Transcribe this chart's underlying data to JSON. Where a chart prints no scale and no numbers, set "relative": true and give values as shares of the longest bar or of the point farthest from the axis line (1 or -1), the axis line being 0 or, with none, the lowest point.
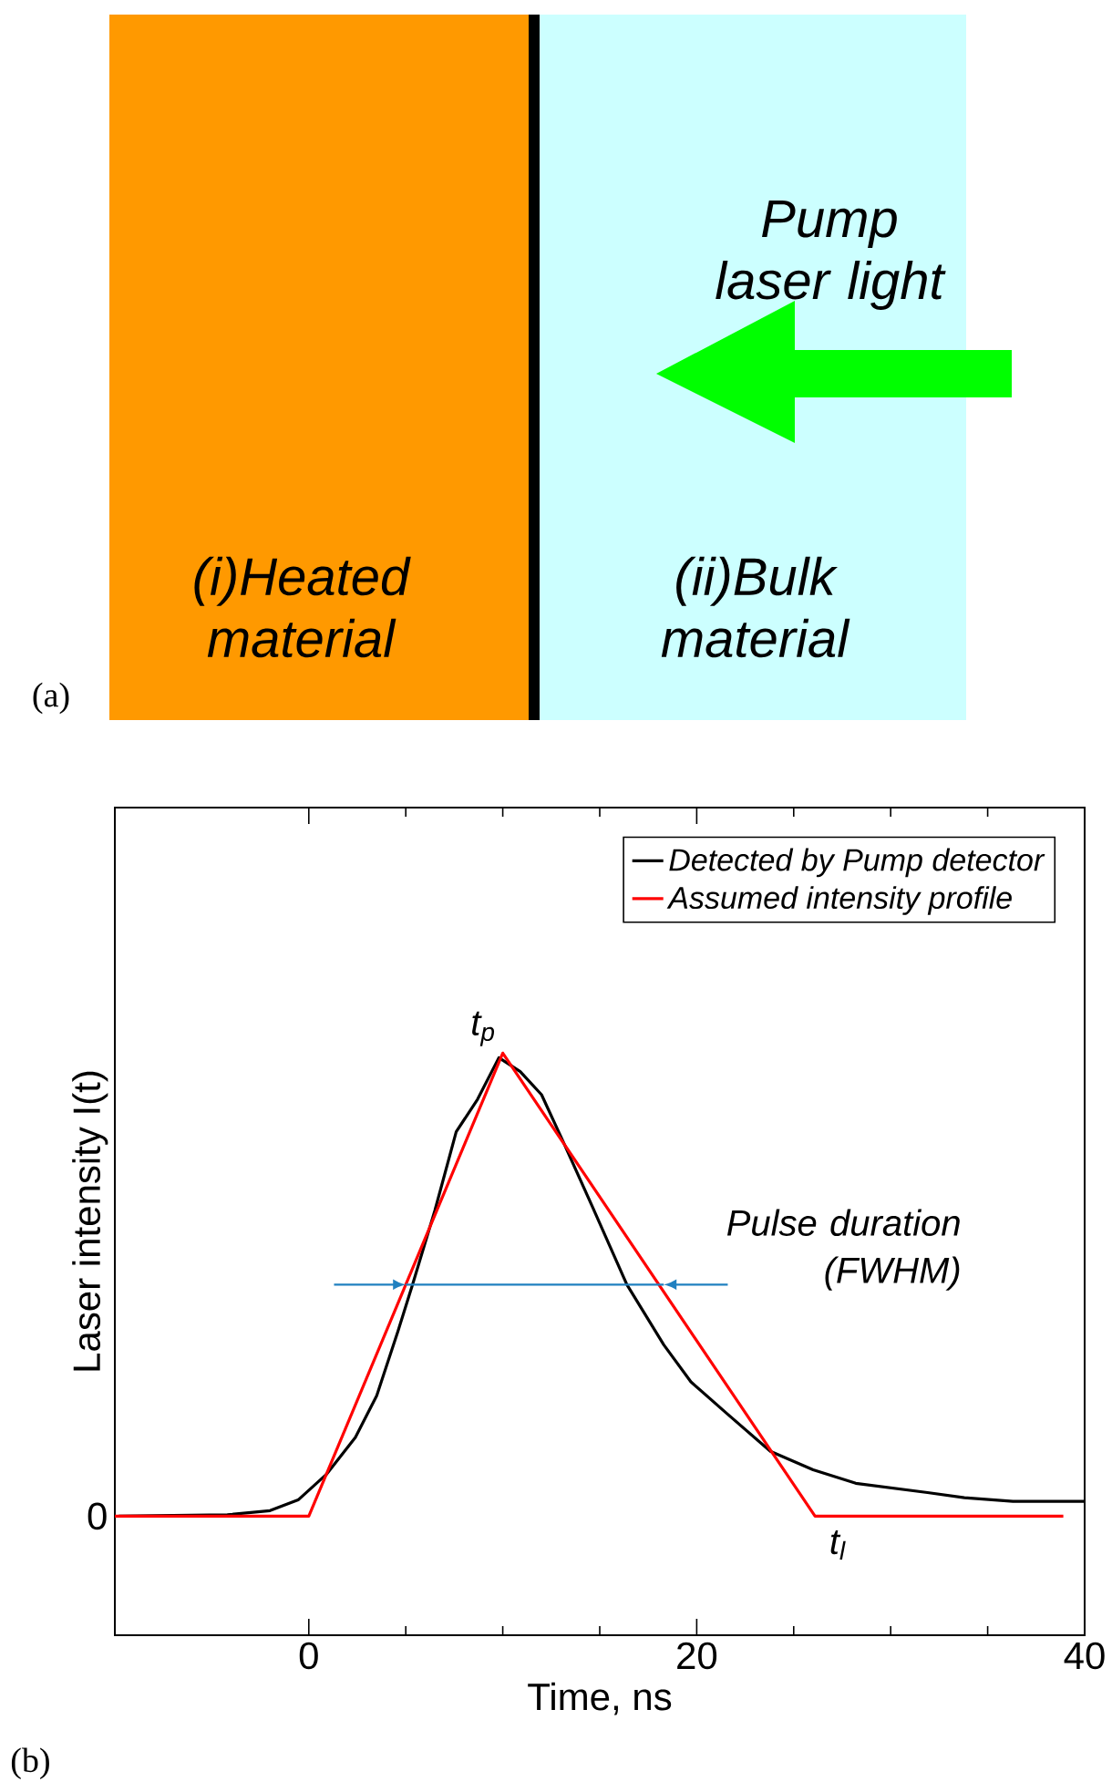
{
  "chart_data": [
    {
      "type": "other",
      "annotations": [
        "Pump laser light",
        "(i)Heated material",
        "(ii)Bulk material",
        "(a)"
      ]
    },
    {
      "type": "line",
      "relative": true,
      "xlabel": "Time, ns",
      "ylabel": "Laser intensity I(t)",
      "xlim": [
        -10,
        40
      ],
      "xticks": [
        0,
        20,
        40
      ],
      "legend": "top right",
      "grid": false,
      "marker": "none",
      "line_style": "solid",
      "series": [
        {
          "name": "Detected by Pump detector",
          "color": "#000000",
          "x": [
            -9.8,
            -4.2,
            -2,
            -0.55,
            0.9,
            2.4,
            3.5,
            4.6,
            5.35,
            6.5,
            7.6,
            8.7,
            9.8,
            10.9,
            12,
            13.1,
            14.6,
            16.4,
            18.3,
            19.7,
            21.6,
            23.8,
            26,
            28.2,
            31.9,
            33.8,
            36.3,
            40
          ],
          "values": [
            0,
            0.003,
            0.012,
            0.035,
            0.09,
            0.17,
            0.26,
            0.4,
            0.5,
            0.66,
            0.83,
            0.9,
            0.99,
            0.96,
            0.91,
            0.81,
            0.67,
            0.5,
            0.37,
            0.29,
            0.22,
            0.14,
            0.1,
            0.071,
            0.051,
            0.04,
            0.032,
            0.032
          ]
        },
        {
          "name": "Assumed intensity profile",
          "color": "#ff0000",
          "x": [
            -10,
            0,
            10,
            26.1,
            38.9
          ],
          "values": [
            0,
            0,
            1,
            0,
            0
          ]
        }
      ],
      "annotations": [
        "Pulse duration (FWHM)",
        "(b)",
        {
          "text": "t$_{p}$",
          "x": 10,
          "y": 1
        },
        {
          "text": "t$_{l}$",
          "x": 26.1,
          "y": 0
        },
        "0"
      ]
    }
  ]
}
